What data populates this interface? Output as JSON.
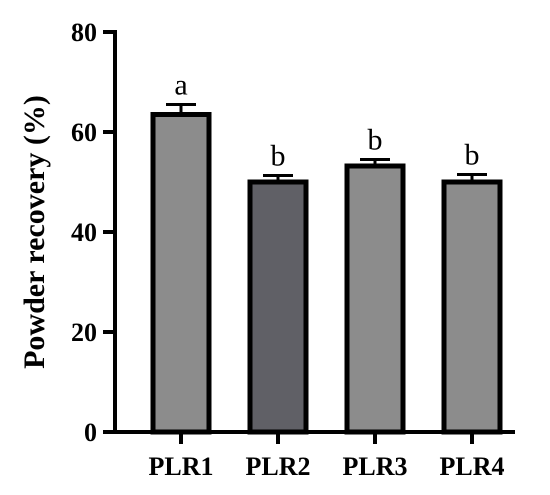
{
  "chart_data": {
    "type": "bar",
    "title": "",
    "xlabel": "",
    "ylabel": "Powder recovery (%)",
    "ylim": [
      0,
      80
    ],
    "yticks": [
      0,
      20,
      40,
      60,
      80
    ],
    "grid": false,
    "categories": [
      "PLR1",
      "PLR2",
      "PLR3",
      "PLR4"
    ],
    "values": [
      63.5,
      50,
      53.2,
      50
    ],
    "errors": [
      2,
      1.3,
      1.3,
      1.5
    ],
    "significance_labels": [
      "a",
      "b",
      "b",
      "b"
    ],
    "bar_colors": [
      "#8c8c8c",
      "#606066",
      "#8c8c8c",
      "#8c8c8c"
    ],
    "edge_color": "#000000"
  }
}
